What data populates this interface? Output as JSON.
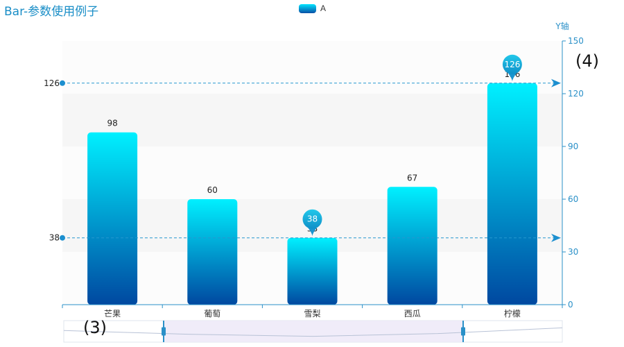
{
  "title": "Bar-参数使用例子",
  "annotations": {
    "left": "(3)",
    "right": "(4)"
  },
  "chart_data": {
    "type": "bar",
    "title": "Bar-参数使用例子",
    "categories": [
      "芒果",
      "葡萄",
      "雪梨",
      "西瓜",
      "柠檬"
    ],
    "series": [
      {
        "name": "A",
        "values": [
          98,
          60,
          38,
          67,
          126
        ]
      }
    ],
    "ylabel": "Y轴",
    "y_axis_position": "right",
    "ylim": [
      0,
      150
    ],
    "y_ticks": [
      0,
      30,
      60,
      90,
      120,
      150
    ],
    "bar_gradient": [
      "#00f0ff",
      "#0048a0"
    ],
    "mark_points": [
      {
        "label": "38",
        "value": 38,
        "category": "雪梨"
      },
      {
        "label": "126",
        "value": 126,
        "category": "柠檬"
      }
    ],
    "mark_lines": [
      {
        "label": "126",
        "value": 126
      },
      {
        "label": "38",
        "value": 38
      }
    ],
    "data_labels": true,
    "legend_position": "top-center",
    "split_area": true,
    "datazoom_slider": true
  }
}
